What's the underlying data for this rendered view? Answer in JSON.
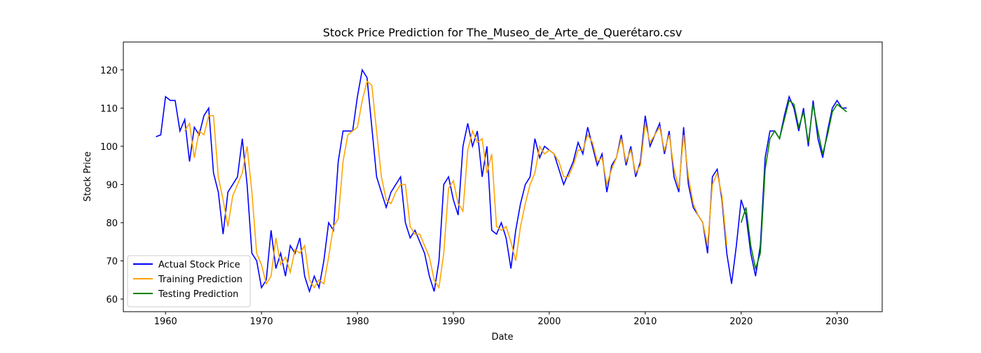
{
  "chart_data": {
    "type": "line",
    "title": "Stock Price Prediction for The_Museo_de_Arte_de_Querétaro.csv",
    "x_label": "Date",
    "y_label": "Stock Price",
    "x": [
      1959,
      1959.5,
      1960,
      1960.5,
      1961,
      1961.5,
      1962,
      1962.5,
      1963,
      1963.5,
      1964,
      1964.5,
      1965,
      1965.5,
      1966,
      1966.5,
      1967,
      1967.5,
      1968,
      1968.5,
      1969,
      1969.5,
      1970,
      1970.5,
      1971,
      1971.5,
      1972,
      1972.5,
      1973,
      1973.5,
      1974,
      1974.5,
      1975,
      1975.5,
      1976,
      1976.5,
      1977,
      1977.5,
      1978,
      1978.5,
      1979,
      1979.5,
      1980,
      1980.5,
      1981,
      1981.5,
      1982,
      1982.5,
      1983,
      1983.5,
      1984,
      1984.5,
      1985,
      1985.5,
      1986,
      1986.5,
      1987,
      1987.5,
      1988,
      1988.5,
      1989,
      1989.5,
      1990,
      1990.5,
      1991,
      1991.5,
      1992,
      1992.5,
      1993,
      1993.5,
      1994,
      1994.5,
      1995,
      1995.5,
      1996,
      1996.5,
      1997,
      1997.5,
      1998,
      1998.5,
      1999,
      1999.5,
      2000,
      2000.5,
      2001,
      2001.5,
      2002,
      2002.5,
      2003,
      2003.5,
      2004,
      2004.5,
      2005,
      2005.5,
      2006,
      2006.5,
      2007,
      2007.5,
      2008,
      2008.5,
      2009,
      2009.5,
      2010,
      2010.5,
      2011,
      2011.5,
      2012,
      2012.5,
      2013,
      2013.5,
      2014,
      2014.5,
      2015,
      2015.5,
      2016,
      2016.5,
      2017,
      2017.5,
      2018,
      2018.5,
      2019,
      2019.5,
      2020,
      2020.5,
      2021,
      2021.5,
      2022,
      2022.5,
      2023,
      2023.5,
      2024,
      2024.5,
      2025,
      2025.5,
      2026,
      2026.5,
      2027,
      2027.5,
      2028,
      2028.5,
      2029,
      2029.5,
      2030,
      2030.5,
      2031
    ],
    "series": [
      {
        "name": "Actual Stock Price",
        "color": "#0000ff",
        "values": [
          102.5,
          103,
          113,
          112,
          112,
          104,
          107,
          96,
          105,
          103,
          108,
          110,
          93,
          88,
          77,
          88,
          90,
          92,
          102,
          90,
          72,
          70,
          63,
          65,
          78,
          68,
          72,
          66,
          74,
          72,
          76,
          66,
          62,
          66,
          63,
          70,
          80,
          78,
          96,
          104,
          104,
          104,
          113,
          120,
          118,
          105,
          92,
          88,
          84,
          88,
          90,
          92,
          80,
          76,
          78,
          75,
          72,
          66,
          62,
          70,
          90,
          92,
          86,
          82,
          100,
          106,
          100,
          104,
          92,
          100,
          78,
          77,
          80,
          76,
          68,
          78,
          85,
          90,
          92,
          102,
          97,
          100,
          99,
          98,
          94,
          90,
          93,
          96,
          101,
          98,
          105,
          100,
          95,
          98,
          88,
          95,
          97,
          103,
          95,
          100,
          92,
          96,
          108,
          100,
          103,
          106,
          98,
          104,
          92,
          88,
          105,
          90,
          84,
          82,
          80,
          72,
          92,
          94,
          86,
          72,
          64,
          74,
          86,
          82,
          72,
          66,
          74,
          97,
          104,
          104,
          102,
          108,
          113,
          110,
          104,
          110,
          100,
          112,
          102,
          97,
          104,
          110,
          112,
          110,
          110
        ]
      },
      {
        "name": "Training Prediction",
        "color": "#ffa500",
        "values": [
          null,
          null,
          null,
          null,
          null,
          null,
          104,
          106,
          97,
          104,
          103,
          108,
          108,
          92,
          86,
          79,
          87,
          90,
          93,
          100,
          88,
          72,
          69,
          64,
          66,
          76,
          69,
          71,
          67,
          73,
          72,
          74,
          65,
          63,
          65,
          64,
          71,
          79,
          81,
          96,
          103,
          104,
          105,
          112,
          117,
          116,
          104,
          92,
          86,
          85,
          88,
          90,
          90,
          79,
          77,
          77,
          74,
          71,
          65,
          63,
          72,
          89,
          91,
          85,
          83,
          99,
          104,
          101,
          102,
          93,
          98,
          79,
          78,
          79,
          75,
          70,
          79,
          85,
          90,
          93,
          100,
          98,
          99,
          98,
          96,
          92,
          92,
          95,
          99,
          99,
          103,
          101,
          96,
          97,
          90,
          94,
          97,
          102,
          96,
          99,
          93,
          95,
          106,
          101,
          103,
          105,
          99,
          103,
          94,
          89,
          103,
          92,
          85,
          82,
          80,
          74,
          90,
          93,
          87,
          74,
          null,
          null,
          null,
          null,
          null,
          null,
          null,
          null,
          null,
          null,
          null,
          null,
          null,
          null,
          null,
          null,
          null,
          null,
          null,
          null,
          null,
          null,
          null,
          null,
          null
        ]
      },
      {
        "name": "Testing Prediction",
        "color": "#008000",
        "values": [
          null,
          null,
          null,
          null,
          null,
          null,
          null,
          null,
          null,
          null,
          null,
          null,
          null,
          null,
          null,
          null,
          null,
          null,
          null,
          null,
          null,
          null,
          null,
          null,
          null,
          null,
          null,
          null,
          null,
          null,
          null,
          null,
          null,
          null,
          null,
          null,
          null,
          null,
          null,
          null,
          null,
          null,
          null,
          null,
          null,
          null,
          null,
          null,
          null,
          null,
          null,
          null,
          null,
          null,
          null,
          null,
          null,
          null,
          null,
          null,
          null,
          null,
          null,
          null,
          null,
          null,
          null,
          null,
          null,
          null,
          null,
          null,
          null,
          null,
          null,
          null,
          null,
          null,
          null,
          null,
          null,
          null,
          null,
          null,
          null,
          null,
          null,
          null,
          null,
          null,
          null,
          null,
          null,
          null,
          null,
          null,
          null,
          null,
          null,
          null,
          null,
          null,
          null,
          null,
          null,
          null,
          null,
          null,
          null,
          null,
          null,
          null,
          null,
          null,
          null,
          null,
          null,
          null,
          null,
          null,
          null,
          null,
          80,
          84,
          74,
          68,
          72,
          94,
          102,
          104,
          102,
          107,
          112,
          111,
          105,
          109,
          101,
          111,
          104,
          98,
          103,
          109,
          111,
          110,
          109
        ]
      }
    ],
    "xlim": [
      1955.6,
      2034.7
    ],
    "ylim": [
      56.7,
      127.3
    ],
    "xticks": [
      1960,
      1970,
      1980,
      1990,
      2000,
      2010,
      2020,
      2030
    ],
    "yticks": [
      60,
      70,
      80,
      90,
      100,
      110,
      120
    ],
    "legend": "lower left"
  }
}
